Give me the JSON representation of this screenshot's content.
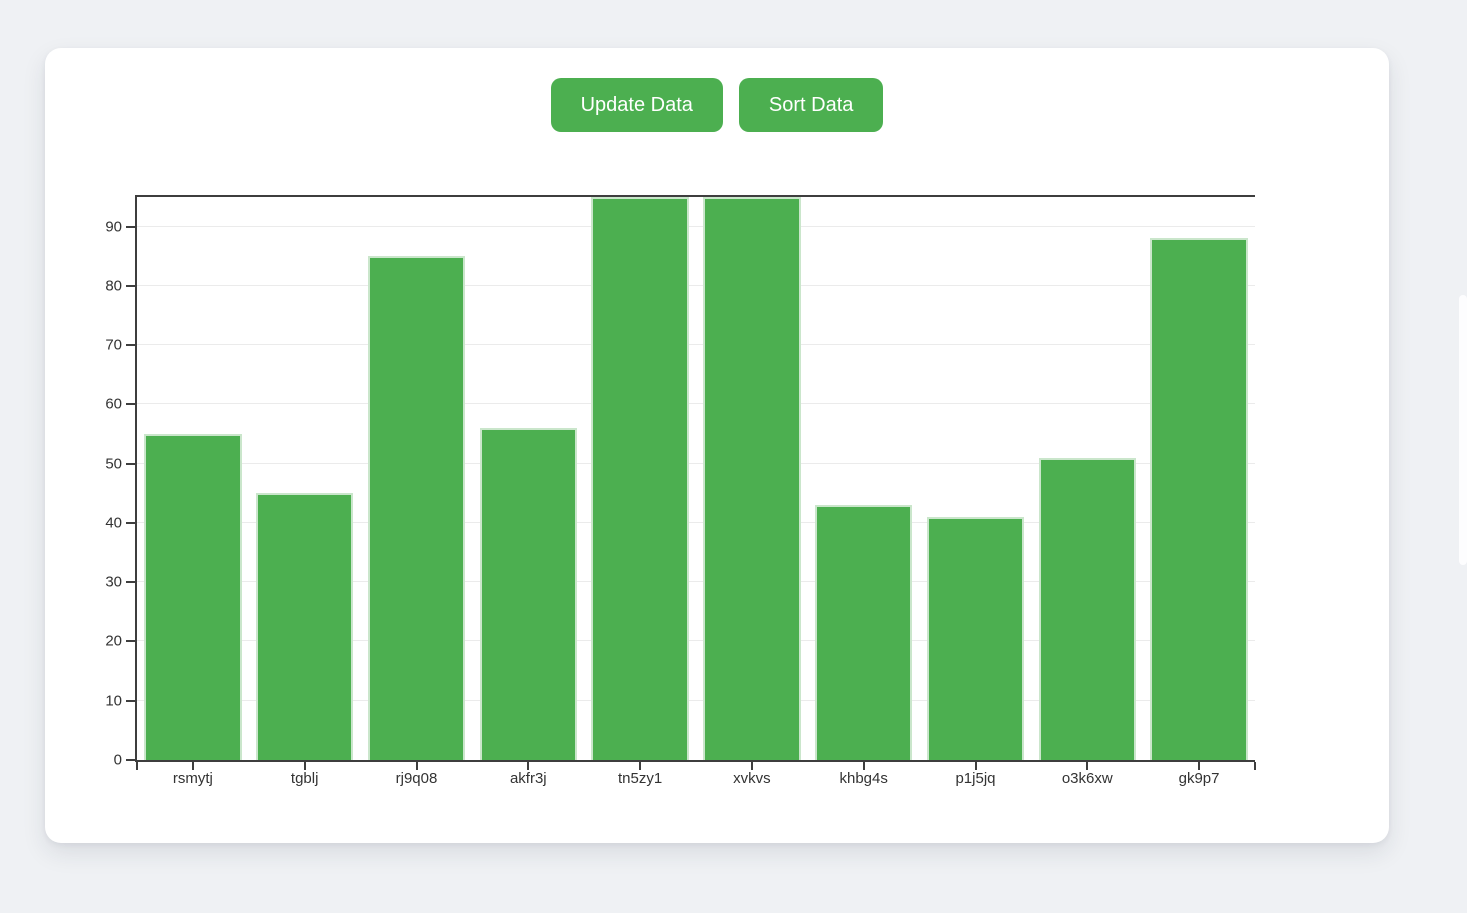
{
  "page": {
    "background_color": "#eff1f4",
    "card_background_color": "#ffffff"
  },
  "toolbar": {
    "update_button_label": "Update Data",
    "sort_button_label": "Sort Data",
    "button_color": "#4caf50",
    "button_text_color": "#ffffff"
  },
  "chart_data": {
    "type": "bar",
    "title": "",
    "xlabel": "",
    "ylabel": "",
    "categories": [
      "rsmytj",
      "tgblj",
      "rj9q08",
      "akfr3j",
      "tn5zy1",
      "xvkvs",
      "khbg4s",
      "p1j5jq",
      "o3k6xw",
      "gk9p7"
    ],
    "values": [
      55,
      45,
      85,
      56,
      95,
      95,
      43,
      41,
      51,
      88
    ],
    "ylim": [
      0,
      95
    ],
    "yticks": [
      0,
      10,
      20,
      30,
      40,
      50,
      60,
      70,
      80,
      90
    ],
    "grid": true,
    "legend": "none",
    "bar_color": "#4caf50",
    "bar_border_color": "#cae6cb",
    "axis_color": "#3e3e3e",
    "gridline_color": "#ebebeb",
    "tick_label_color": "#333333"
  }
}
